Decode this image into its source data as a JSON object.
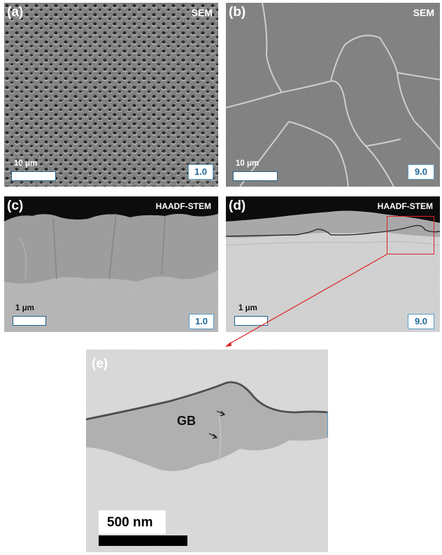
{
  "panels": {
    "a": {
      "label": "(a)",
      "technique": "SEM",
      "scale_bar": "10 μm",
      "value": "1.0"
    },
    "b": {
      "label": "(b)",
      "technique": "SEM",
      "scale_bar": "10 μm",
      "value": "9.0"
    },
    "c": {
      "label": "(c)",
      "technique": "HAADF-STEM",
      "scale_bar": "1 μm",
      "value": "1.0"
    },
    "d": {
      "label": "(d)",
      "technique": "HAADF-STEM",
      "scale_bar": "1 μm",
      "value": "9.0"
    },
    "e": {
      "label": "(e)",
      "annotation": "GB",
      "scale_bar": "500 nm"
    }
  },
  "colors": {
    "highlight": "#e02020",
    "badge_text": "#1f6a9a"
  }
}
